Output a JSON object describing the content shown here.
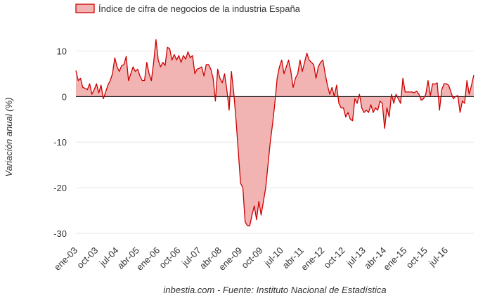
{
  "chart_data": {
    "type": "area",
    "title": "",
    "ylabel": "Variación anual (%)",
    "xlabel": "",
    "legend_position": "top-left",
    "grid": "horizontal",
    "ylim": [
      -32,
      15
    ],
    "yticks": [
      10,
      0,
      -10,
      -20,
      -30
    ],
    "xticks": [
      "ene-03",
      "oct-03",
      "jul-04",
      "abr-05",
      "ene-06",
      "oct-06",
      "jul-07",
      "abr-08",
      "ene-09",
      "oct-09",
      "jul-10",
      "abr-11",
      "ene-12",
      "oct-12",
      "jul-13",
      "abr-14",
      "ene-15",
      "oct-15",
      "jul-16"
    ],
    "credit": "inbestia.com - Fuente: Instituto Nacional de Estadística",
    "colors": {
      "line": "#cc0000",
      "fill": "#f2b3b3",
      "grid": "#e6e6e6",
      "zero_line": "#000000"
    },
    "series": [
      {
        "name": "Índice de cifra de negocios de la industria España",
        "start_label": "ene-03",
        "frequency": "monthly",
        "values": [
          5.7,
          3.5,
          4.0,
          2.0,
          1.8,
          1.5,
          2.8,
          0.5,
          1.5,
          2.8,
          0.8,
          2.5,
          -0.5,
          1.0,
          2.5,
          3.5,
          5.0,
          8.5,
          6.5,
          5.5,
          6.8,
          7.0,
          8.8,
          3.5,
          5.0,
          6.5,
          5.5,
          6.0,
          4.5,
          3.5,
          3.5,
          7.5,
          5.0,
          3.5,
          7.5,
          12.5,
          8.0,
          6.5,
          7.5,
          6.8,
          10.8,
          10.5,
          8.0,
          9.2,
          8.0,
          9.0,
          7.5,
          9.0,
          8.2,
          9.8,
          8.5,
          9.0,
          5.0,
          6.0,
          6.2,
          6.5,
          4.5,
          7.0,
          7.0,
          6.0,
          4.0,
          -1.0,
          6.0,
          4.0,
          3.0,
          5.0,
          1.5,
          -3.0,
          5.5,
          1.0,
          -5.0,
          -12.0,
          -19.0,
          -20.0,
          -27.5,
          -28.3,
          -28.4,
          -26.0,
          -24.0,
          -27.0,
          -23.0,
          -26.0,
          -23.0,
          -20.0,
          -15.0,
          -10.0,
          -6.0,
          -1.5,
          4.0,
          6.5,
          8.0,
          5.0,
          6.5,
          8.0,
          5.5,
          2.0,
          4.0,
          5.0,
          8.0,
          5.5,
          7.5,
          9.5,
          8.0,
          7.5,
          7.0,
          4.0,
          6.5,
          7.5,
          8.0,
          5.0,
          2.5,
          0.5,
          2.0,
          0.0,
          2.5,
          -1.5,
          -2.5,
          -2.5,
          -4.5,
          -3.5,
          -5.0,
          -5.3,
          -0.5,
          -1.5,
          0.5,
          -2.5,
          -3.5,
          -3.0,
          -3.5,
          -1.8,
          -3.5,
          -2.5,
          -3.0,
          -1.0,
          -1.5,
          -7.0,
          -2.5,
          -4.5,
          0.5,
          -1.5,
          0.5,
          -0.5,
          -1.5,
          4.0,
          1.0,
          1.0,
          1.0,
          1.0,
          0.8,
          1.2,
          0.5,
          -0.8,
          -0.5,
          0.5,
          3.5,
          0.2,
          2.8,
          2.7,
          3.0,
          -3.0,
          1.5,
          2.8,
          2.8,
          2.5,
          1.0,
          -0.5,
          0.0,
          0.2,
          -3.5,
          -1.0,
          -1.5,
          3.5,
          0.5,
          2.5,
          4.7
        ]
      }
    ]
  }
}
